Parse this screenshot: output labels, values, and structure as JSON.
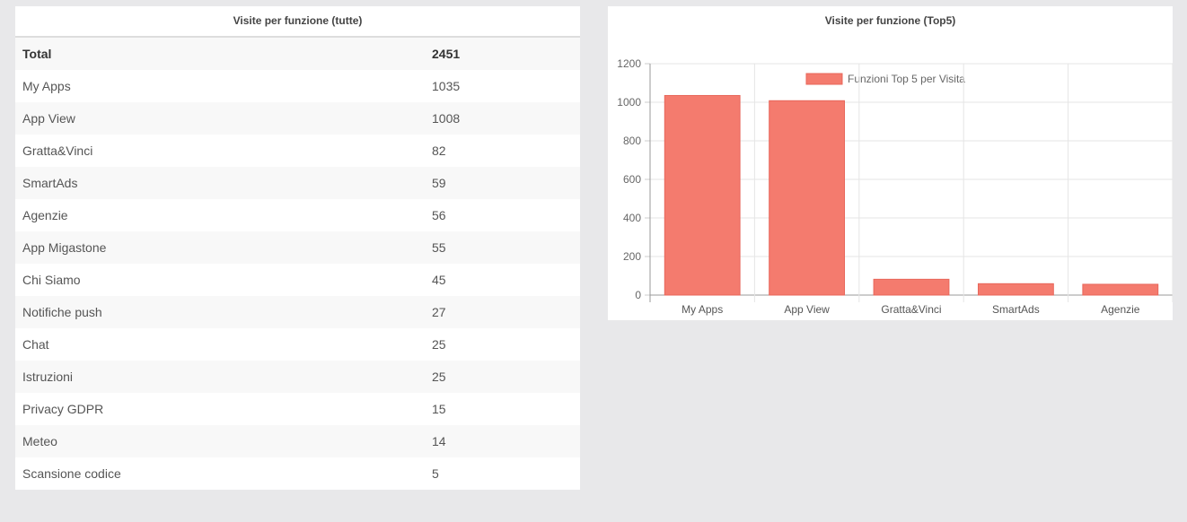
{
  "table_panel": {
    "title": "Visite per funzione (tutte)",
    "total": {
      "label": "Total",
      "value": "2451"
    },
    "rows": [
      {
        "label": "My Apps",
        "value": "1035"
      },
      {
        "label": "App View",
        "value": "1008"
      },
      {
        "label": "Gratta&Vinci",
        "value": "82"
      },
      {
        "label": "SmartAds",
        "value": "59"
      },
      {
        "label": "Agenzie",
        "value": "56"
      },
      {
        "label": "App Migastone",
        "value": "55"
      },
      {
        "label": "Chi Siamo",
        "value": "45"
      },
      {
        "label": "Notifiche push",
        "value": "27"
      },
      {
        "label": "Chat",
        "value": "25"
      },
      {
        "label": "Istruzioni",
        "value": "25"
      },
      {
        "label": "Privacy GDPR",
        "value": "15"
      },
      {
        "label": "Meteo",
        "value": "14"
      },
      {
        "label": "Scansione codice",
        "value": "5"
      }
    ]
  },
  "chart_panel": {
    "title": "Visite per funzione (Top5)"
  },
  "chart_data": {
    "type": "bar",
    "title": "Visite per funzione (Top5)",
    "categories": [
      "My Apps",
      "App View",
      "Gratta&Vinci",
      "SmartAds",
      "Agenzie"
    ],
    "series": [
      {
        "name": "Funzioni Top 5 per Visita",
        "values": [
          1035,
          1008,
          82,
          59,
          56
        ]
      }
    ],
    "ylim": [
      0,
      1200
    ],
    "yticks": [
      "0",
      "200",
      "400",
      "600",
      "800",
      "1000",
      "1200"
    ],
    "grid": true,
    "legend": "top",
    "color": "#f47b6e"
  }
}
